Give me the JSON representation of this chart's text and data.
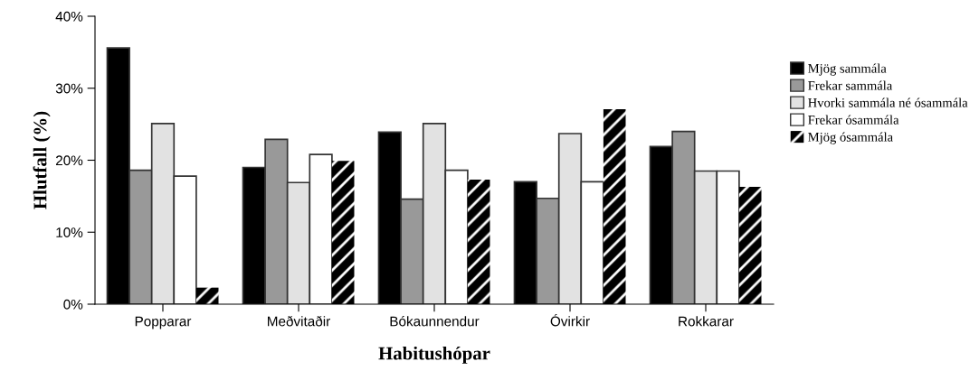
{
  "chart_data": {
    "type": "bar",
    "xlabel": "Habitushópar",
    "ylabel": "Hlutfall (%)",
    "categories": [
      "Popparar",
      "Meðvitaðir",
      "Bókaunnendur",
      "Óvirkir",
      "Rokkarar"
    ],
    "series": [
      {
        "name": "Mjög sammála",
        "color": "#000000",
        "values": [
          35.6,
          19.0,
          23.9,
          17.0,
          21.9
        ]
      },
      {
        "name": "Frekar sammála",
        "color": "#999999",
        "values": [
          18.6,
          22.9,
          14.6,
          14.7,
          24.0
        ]
      },
      {
        "name": "Hvorki sammála né ósammála",
        "color": "#e2e2e2",
        "values": [
          25.1,
          16.9,
          25.1,
          23.7,
          18.5
        ]
      },
      {
        "name": "Frekar ósammála",
        "color": "#ffffff",
        "values": [
          17.8,
          20.8,
          18.6,
          17.0,
          18.5
        ]
      },
      {
        "name": "Mjög ósammála",
        "color": "#000000",
        "values": [
          2.3,
          19.9,
          17.3,
          27.1,
          16.3
        ]
      }
    ],
    "ylim": [
      0,
      40
    ],
    "yticks": [
      {
        "value": 0,
        "label": "0%"
      },
      {
        "value": 10,
        "label": "10%"
      },
      {
        "value": 20,
        "label": "20%"
      },
      {
        "value": 30,
        "label": "30%"
      },
      {
        "value": 40,
        "label": "40%"
      }
    ],
    "grid": false,
    "legend": "right"
  }
}
